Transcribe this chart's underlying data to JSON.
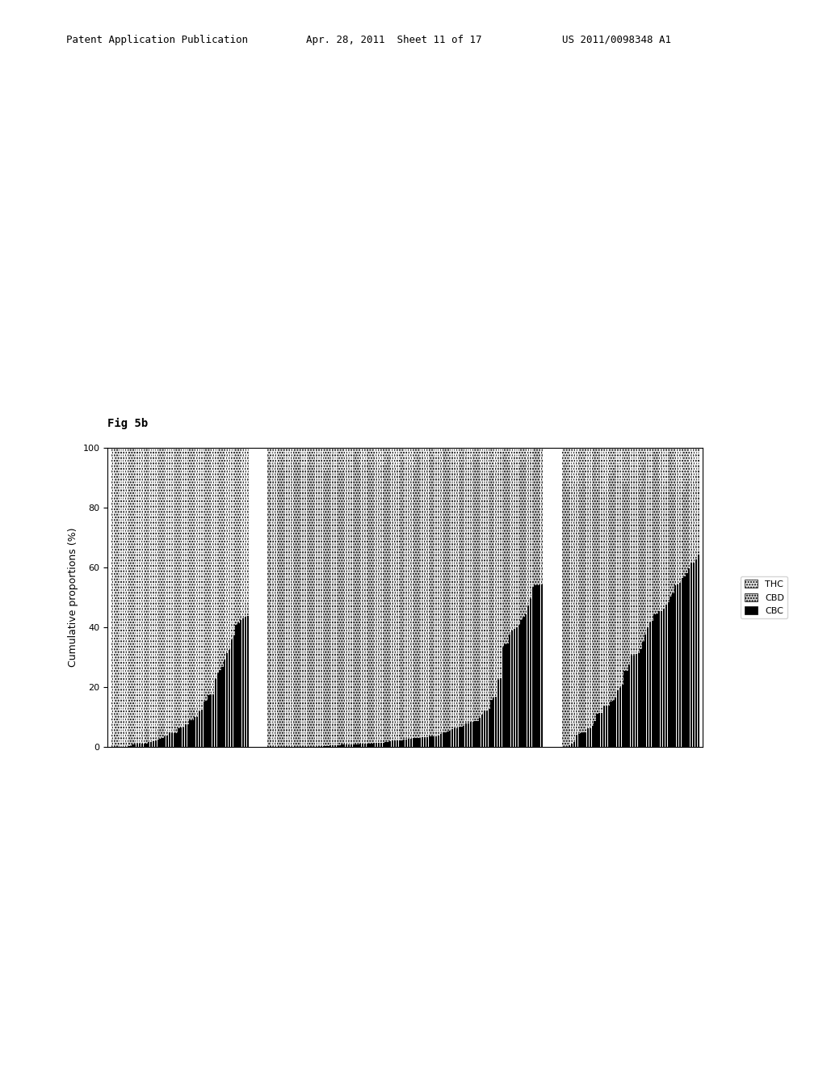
{
  "title": "Fig 5b",
  "ylabel": "Cumulative proportions (%)",
  "ylim": [
    0,
    100
  ],
  "yticks": [
    0,
    20,
    40,
    60,
    80,
    100
  ],
  "legend_labels": [
    "THC",
    "CBD",
    "CBC"
  ],
  "legend_colors": [
    "#e0e0e0",
    "#b0b0b0",
    "#000000"
  ],
  "legend_hatches": [
    "...",
    "...",
    ""
  ],
  "background_color": "#ffffff",
  "chart_bg": "#ffffff",
  "group1_n": 60,
  "group2_n": 120,
  "group3_n": 60,
  "header_text_left": "Patent Application Publication",
  "header_text_center": "Apr. 28, 2011  Sheet 11 of 17",
  "header_text_right": "US 2011/0098348 A1"
}
